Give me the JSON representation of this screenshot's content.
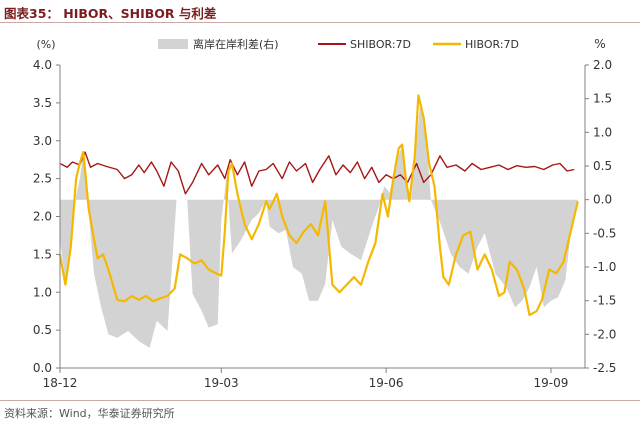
{
  "header": {
    "title": "图表35：  HIBOR、SHIBOR 与利差"
  },
  "footer": {
    "source": "资料来源：Wind，华泰证券研究所"
  },
  "chart_data": {
    "type": "line",
    "title": "HIBOR、SHIBOR 与利差",
    "left_axis": {
      "unit_label": "(%)",
      "ylim": [
        0,
        4.0
      ],
      "ticks": [
        "0.0",
        "0.5",
        "1.0",
        "1.5",
        "2.0",
        "2.5",
        "3.0",
        "3.5",
        "4.0"
      ]
    },
    "right_axis": {
      "unit_label": "%",
      "ylim": [
        -2.5,
        2.0
      ],
      "ticks": [
        "2.0",
        "1.5",
        "1.0",
        "0.5",
        "0.0",
        "-0.5",
        "-1.0",
        "-1.5",
        "-2.0",
        "-2.5"
      ]
    },
    "x_axis": {
      "type": "date",
      "range": [
        "2018-12-01",
        "2019-09-20"
      ],
      "ticks": [
        "18-12",
        "19-03",
        "19-06",
        "19-09"
      ],
      "tick_dates": [
        "2018-12-01",
        "2019-03-01",
        "2019-06-01",
        "2019-09-01"
      ]
    },
    "legend": {
      "position": "top",
      "items": [
        "离岸在岸利差(右)",
        "SHIBOR:7D",
        "HIBOR:7D"
      ]
    },
    "series": [
      {
        "name": "离岸在岸利差(右)",
        "type": "area",
        "axis": "right",
        "color": "#d3d3d3",
        "points": [
          [
            "2018-12-01",
            -0.6
          ],
          [
            "2018-12-04",
            -1.2
          ],
          [
            "2018-12-07",
            -0.8
          ],
          [
            "2018-12-10",
            0.05
          ],
          [
            "2018-12-12",
            0.3
          ],
          [
            "2018-12-14",
            0.7
          ],
          [
            "2018-12-17",
            -0.2
          ],
          [
            "2018-12-20",
            -1.1
          ],
          [
            "2018-12-24",
            -1.6
          ],
          [
            "2018-12-28",
            -2.0
          ],
          [
            "2019-01-02",
            -2.05
          ],
          [
            "2019-01-08",
            -1.95
          ],
          [
            "2019-01-14",
            -2.1
          ],
          [
            "2019-01-20",
            -2.2
          ],
          [
            "2019-01-24",
            -1.8
          ],
          [
            "2019-01-30",
            -1.95
          ],
          [
            "2019-02-04",
            0.0
          ],
          [
            "2019-02-10",
            0.0
          ],
          [
            "2019-02-13",
            -1.4
          ],
          [
            "2019-02-18",
            -1.65
          ],
          [
            "2019-02-22",
            -1.9
          ],
          [
            "2019-02-27",
            -1.85
          ],
          [
            "2019-03-01",
            -0.3
          ],
          [
            "2019-03-04",
            0.35
          ],
          [
            "2019-03-07",
            -0.8
          ],
          [
            "2019-03-12",
            -0.6
          ],
          [
            "2019-03-18",
            -0.3
          ],
          [
            "2019-03-22",
            -0.2
          ],
          [
            "2019-03-26",
            0.0
          ],
          [
            "2019-03-28",
            -0.4
          ],
          [
            "2019-04-02",
            -0.5
          ],
          [
            "2019-04-06",
            -0.45
          ],
          [
            "2019-04-10",
            -1.0
          ],
          [
            "2019-04-15",
            -1.1
          ],
          [
            "2019-04-19",
            -1.5
          ],
          [
            "2019-04-24",
            -1.5
          ],
          [
            "2019-04-28",
            -1.25
          ],
          [
            "2019-05-02",
            -0.3
          ],
          [
            "2019-05-07",
            -0.7
          ],
          [
            "2019-05-12",
            -0.8
          ],
          [
            "2019-05-18",
            -0.9
          ],
          [
            "2019-05-24",
            -0.4
          ],
          [
            "2019-05-28",
            -0.1
          ],
          [
            "2019-05-31",
            0.2
          ],
          [
            "2019-06-03",
            0.1
          ],
          [
            "2019-06-07",
            0.6
          ],
          [
            "2019-06-10",
            0.8
          ],
          [
            "2019-06-13",
            0.2
          ],
          [
            "2019-06-15",
            0.0
          ],
          [
            "2019-06-20",
            1.45
          ],
          [
            "2019-06-24",
            0.7
          ],
          [
            "2019-06-26",
            0.0
          ],
          [
            "2019-07-02",
            -0.4
          ],
          [
            "2019-07-07",
            -0.8
          ],
          [
            "2019-07-12",
            -1.0
          ],
          [
            "2019-07-17",
            -1.1
          ],
          [
            "2019-07-22",
            -0.7
          ],
          [
            "2019-07-26",
            -0.5
          ],
          [
            "2019-08-01",
            -1.1
          ],
          [
            "2019-08-07",
            -1.3
          ],
          [
            "2019-08-12",
            -1.6
          ],
          [
            "2019-08-16",
            -1.5
          ],
          [
            "2019-08-20",
            -1.3
          ],
          [
            "2019-08-24",
            -1.0
          ],
          [
            "2019-08-28",
            -1.6
          ],
          [
            "2019-09-01",
            -1.5
          ],
          [
            "2019-09-05",
            -1.45
          ],
          [
            "2019-09-09",
            -1.2
          ],
          [
            "2019-09-12",
            -0.5
          ],
          [
            "2019-09-16",
            0.0
          ]
        ]
      },
      {
        "name": "SHIBOR:7D",
        "type": "line",
        "axis": "left",
        "color": "#a71616",
        "points": [
          [
            "2018-12-01",
            2.7
          ],
          [
            "2018-12-05",
            2.65
          ],
          [
            "2018-12-08",
            2.72
          ],
          [
            "2018-12-12",
            2.68
          ],
          [
            "2018-12-15",
            2.85
          ],
          [
            "2018-12-18",
            2.65
          ],
          [
            "2018-12-22",
            2.7
          ],
          [
            "2018-12-27",
            2.66
          ],
          [
            "2019-01-02",
            2.62
          ],
          [
            "2019-01-06",
            2.5
          ],
          [
            "2019-01-10",
            2.55
          ],
          [
            "2019-01-14",
            2.68
          ],
          [
            "2019-01-17",
            2.58
          ],
          [
            "2019-01-21",
            2.72
          ],
          [
            "2019-01-24",
            2.6
          ],
          [
            "2019-01-28",
            2.4
          ],
          [
            "2019-02-01",
            2.72
          ],
          [
            "2019-02-05",
            2.6
          ],
          [
            "2019-02-09",
            2.3
          ],
          [
            "2019-02-13",
            2.45
          ],
          [
            "2019-02-18",
            2.7
          ],
          [
            "2019-02-22",
            2.55
          ],
          [
            "2019-02-27",
            2.68
          ],
          [
            "2019-03-03",
            2.5
          ],
          [
            "2019-03-06",
            2.75
          ],
          [
            "2019-03-10",
            2.55
          ],
          [
            "2019-03-14",
            2.72
          ],
          [
            "2019-03-18",
            2.4
          ],
          [
            "2019-03-22",
            2.6
          ],
          [
            "2019-03-26",
            2.62
          ],
          [
            "2019-03-30",
            2.7
          ],
          [
            "2019-04-04",
            2.5
          ],
          [
            "2019-04-08",
            2.72
          ],
          [
            "2019-04-12",
            2.6
          ],
          [
            "2019-04-17",
            2.7
          ],
          [
            "2019-04-21",
            2.45
          ],
          [
            "2019-04-25",
            2.62
          ],
          [
            "2019-04-30",
            2.8
          ],
          [
            "2019-05-04",
            2.55
          ],
          [
            "2019-05-08",
            2.68
          ],
          [
            "2019-05-12",
            2.58
          ],
          [
            "2019-05-16",
            2.72
          ],
          [
            "2019-05-20",
            2.5
          ],
          [
            "2019-05-24",
            2.65
          ],
          [
            "2019-05-28",
            2.45
          ],
          [
            "2019-06-01",
            2.55
          ],
          [
            "2019-06-05",
            2.5
          ],
          [
            "2019-06-09",
            2.55
          ],
          [
            "2019-06-13",
            2.45
          ],
          [
            "2019-06-18",
            2.7
          ],
          [
            "2019-06-22",
            2.45
          ],
          [
            "2019-06-26",
            2.55
          ],
          [
            "2019-07-01",
            2.8
          ],
          [
            "2019-07-05",
            2.65
          ],
          [
            "2019-07-10",
            2.68
          ],
          [
            "2019-07-15",
            2.6
          ],
          [
            "2019-07-19",
            2.7
          ],
          [
            "2019-07-24",
            2.62
          ],
          [
            "2019-07-29",
            2.65
          ],
          [
            "2019-08-03",
            2.68
          ],
          [
            "2019-08-08",
            2.62
          ],
          [
            "2019-08-13",
            2.67
          ],
          [
            "2019-08-18",
            2.65
          ],
          [
            "2019-08-23",
            2.66
          ],
          [
            "2019-08-28",
            2.62
          ],
          [
            "2019-09-02",
            2.68
          ],
          [
            "2019-09-06",
            2.7
          ],
          [
            "2019-09-10",
            2.6
          ],
          [
            "2019-09-14",
            2.62
          ]
        ]
      },
      {
        "name": "HIBOR:7D",
        "type": "line",
        "axis": "left",
        "color": "#f5b800",
        "points": [
          [
            "2018-12-01",
            1.5
          ],
          [
            "2018-12-04",
            1.1
          ],
          [
            "2018-12-07",
            1.6
          ],
          [
            "2018-12-10",
            2.5
          ],
          [
            "2018-12-12",
            2.7
          ],
          [
            "2018-12-14",
            2.85
          ],
          [
            "2018-12-17",
            2.1
          ],
          [
            "2018-12-20",
            1.7
          ],
          [
            "2018-12-22",
            1.45
          ],
          [
            "2018-12-25",
            1.5
          ],
          [
            "2018-12-28",
            1.3
          ],
          [
            "2019-01-02",
            0.9
          ],
          [
            "2019-01-06",
            0.88
          ],
          [
            "2019-01-10",
            0.95
          ],
          [
            "2019-01-14",
            0.9
          ],
          [
            "2019-01-18",
            0.95
          ],
          [
            "2019-01-22",
            0.88
          ],
          [
            "2019-01-26",
            0.92
          ],
          [
            "2019-01-30",
            0.95
          ],
          [
            "2019-02-03",
            1.05
          ],
          [
            "2019-02-06",
            1.5
          ],
          [
            "2019-02-10",
            1.45
          ],
          [
            "2019-02-14",
            1.38
          ],
          [
            "2019-02-18",
            1.42
          ],
          [
            "2019-02-22",
            1.3
          ],
          [
            "2019-02-26",
            1.25
          ],
          [
            "2019-03-01",
            1.22
          ],
          [
            "2019-03-03",
            1.8
          ],
          [
            "2019-03-05",
            2.6
          ],
          [
            "2019-03-07",
            2.7
          ],
          [
            "2019-03-10",
            2.3
          ],
          [
            "2019-03-14",
            1.9
          ],
          [
            "2019-03-18",
            1.7
          ],
          [
            "2019-03-22",
            1.9
          ],
          [
            "2019-03-26",
            2.2
          ],
          [
            "2019-03-28",
            2.1
          ],
          [
            "2019-04-01",
            2.3
          ],
          [
            "2019-04-04",
            2.0
          ],
          [
            "2019-04-08",
            1.75
          ],
          [
            "2019-04-12",
            1.65
          ],
          [
            "2019-04-16",
            1.8
          ],
          [
            "2019-04-20",
            1.9
          ],
          [
            "2019-04-24",
            1.75
          ],
          [
            "2019-04-28",
            2.2
          ],
          [
            "2019-05-02",
            1.1
          ],
          [
            "2019-05-06",
            1.0
          ],
          [
            "2019-05-10",
            1.1
          ],
          [
            "2019-05-14",
            1.2
          ],
          [
            "2019-05-18",
            1.1
          ],
          [
            "2019-05-22",
            1.4
          ],
          [
            "2019-05-26",
            1.65
          ],
          [
            "2019-05-30",
            2.3
          ],
          [
            "2019-06-02",
            2.0
          ],
          [
            "2019-06-05",
            2.5
          ],
          [
            "2019-06-08",
            2.9
          ],
          [
            "2019-06-10",
            2.95
          ],
          [
            "2019-06-12",
            2.5
          ],
          [
            "2019-06-14",
            2.2
          ],
          [
            "2019-06-17",
            2.8
          ],
          [
            "2019-06-19",
            3.6
          ],
          [
            "2019-06-22",
            3.3
          ],
          [
            "2019-06-25",
            2.7
          ],
          [
            "2019-06-28",
            2.4
          ],
          [
            "2019-07-01",
            1.6
          ],
          [
            "2019-07-03",
            1.2
          ],
          [
            "2019-07-06",
            1.1
          ],
          [
            "2019-07-10",
            1.5
          ],
          [
            "2019-07-14",
            1.75
          ],
          [
            "2019-07-18",
            1.8
          ],
          [
            "2019-07-22",
            1.3
          ],
          [
            "2019-07-26",
            1.5
          ],
          [
            "2019-07-30",
            1.3
          ],
          [
            "2019-08-03",
            0.95
          ],
          [
            "2019-08-06",
            1.0
          ],
          [
            "2019-08-09",
            1.4
          ],
          [
            "2019-08-13",
            1.3
          ],
          [
            "2019-08-17",
            1.05
          ],
          [
            "2019-08-20",
            0.7
          ],
          [
            "2019-08-24",
            0.75
          ],
          [
            "2019-08-27",
            0.9
          ],
          [
            "2019-08-31",
            1.3
          ],
          [
            "2019-09-04",
            1.25
          ],
          [
            "2019-09-08",
            1.4
          ],
          [
            "2019-09-12",
            1.8
          ],
          [
            "2019-09-16",
            2.2
          ]
        ]
      }
    ]
  }
}
